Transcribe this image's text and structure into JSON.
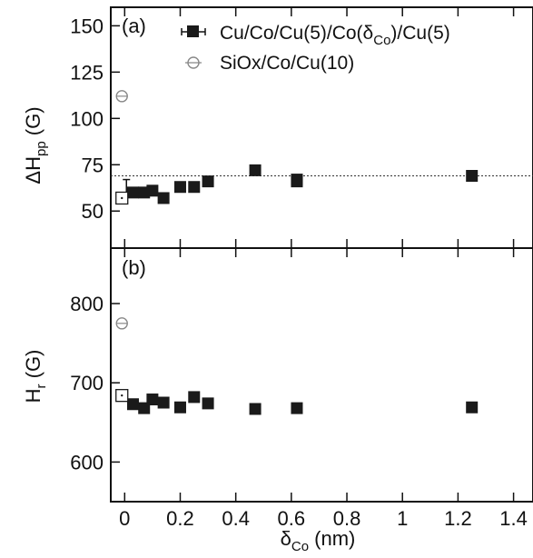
{
  "chart_data": [
    {
      "type": "scatter",
      "panel_label": "(a)",
      "ylabel": "ΔH",
      "ylabel_sub": "pp",
      "ylabel_unit": " (G)",
      "ylim": [
        30,
        160
      ],
      "yticks": [
        50,
        75,
        100,
        125,
        150
      ],
      "grid": false,
      "reference_line": {
        "y": 69,
        "style": "dotted"
      },
      "legend": {
        "placement": "top-right",
        "entries": [
          {
            "text": "Cu/Co/Cu(5)/Co(δ",
            "sub": "Co",
            "tail": ")/Cu(5)",
            "marker": "filled-square",
            "color": "#1a1a1a"
          },
          {
            "text": "SiOx/Co/Cu(10)",
            "marker": "open-circle",
            "color": "#888888"
          }
        ]
      },
      "series": [
        {
          "marker": "filled-square",
          "color": "#1a1a1a",
          "points": [
            {
              "x": 0.03,
              "y": 60
            },
            {
              "x": 0.07,
              "y": 60
            },
            {
              "x": 0.1,
              "y": 61
            },
            {
              "x": 0.14,
              "y": 57
            },
            {
              "x": 0.2,
              "y": 63
            },
            {
              "x": 0.25,
              "y": 63
            },
            {
              "x": 0.3,
              "y": 66
            },
            {
              "x": 0.47,
              "y": 72
            },
            {
              "x": 0.62,
              "y": 66
            },
            {
              "x": 0.62,
              "y": 67
            },
            {
              "x": 1.25,
              "y": 69
            }
          ]
        },
        {
          "marker": "open-square",
          "color": "#1a1a1a",
          "points": [
            {
              "x": -0.01,
              "y": 57,
              "err_up": 10
            }
          ]
        },
        {
          "marker": "open-circle",
          "color": "#888888",
          "points": [
            {
              "x": -0.01,
              "y": 112
            }
          ]
        }
      ]
    },
    {
      "type": "scatter",
      "panel_label": "(b)",
      "ylabel": "H",
      "ylabel_sub": "r",
      "ylabel_unit": " (G)",
      "ylim": [
        550,
        870
      ],
      "yticks": [
        600,
        700,
        800
      ],
      "grid": false,
      "series": [
        {
          "marker": "filled-square",
          "color": "#1a1a1a",
          "points": [
            {
              "x": 0.03,
              "y": 673
            },
            {
              "x": 0.07,
              "y": 668
            },
            {
              "x": 0.1,
              "y": 679
            },
            {
              "x": 0.14,
              "y": 675
            },
            {
              "x": 0.2,
              "y": 669
            },
            {
              "x": 0.25,
              "y": 682
            },
            {
              "x": 0.3,
              "y": 674
            },
            {
              "x": 0.47,
              "y": 667
            },
            {
              "x": 0.62,
              "y": 668
            },
            {
              "x": 1.25,
              "y": 669
            }
          ]
        },
        {
          "marker": "open-square",
          "color": "#1a1a1a",
          "points": [
            {
              "x": -0.01,
              "y": 684
            }
          ]
        },
        {
          "marker": "open-circle",
          "color": "#888888",
          "points": [
            {
              "x": -0.01,
              "y": 775
            }
          ]
        }
      ]
    }
  ],
  "xaxis": {
    "label": "δ",
    "label_sub": "Co",
    "label_unit": " (nm)",
    "xlim": [
      -0.05,
      1.47
    ],
    "ticks": [
      0,
      0.2,
      0.4,
      0.6,
      0.8,
      1,
      1.2,
      1.4
    ],
    "tick_labels": [
      "0",
      "0.2",
      "0.4",
      "0.6",
      "0.8",
      "1",
      "1.2",
      "1.4"
    ]
  }
}
